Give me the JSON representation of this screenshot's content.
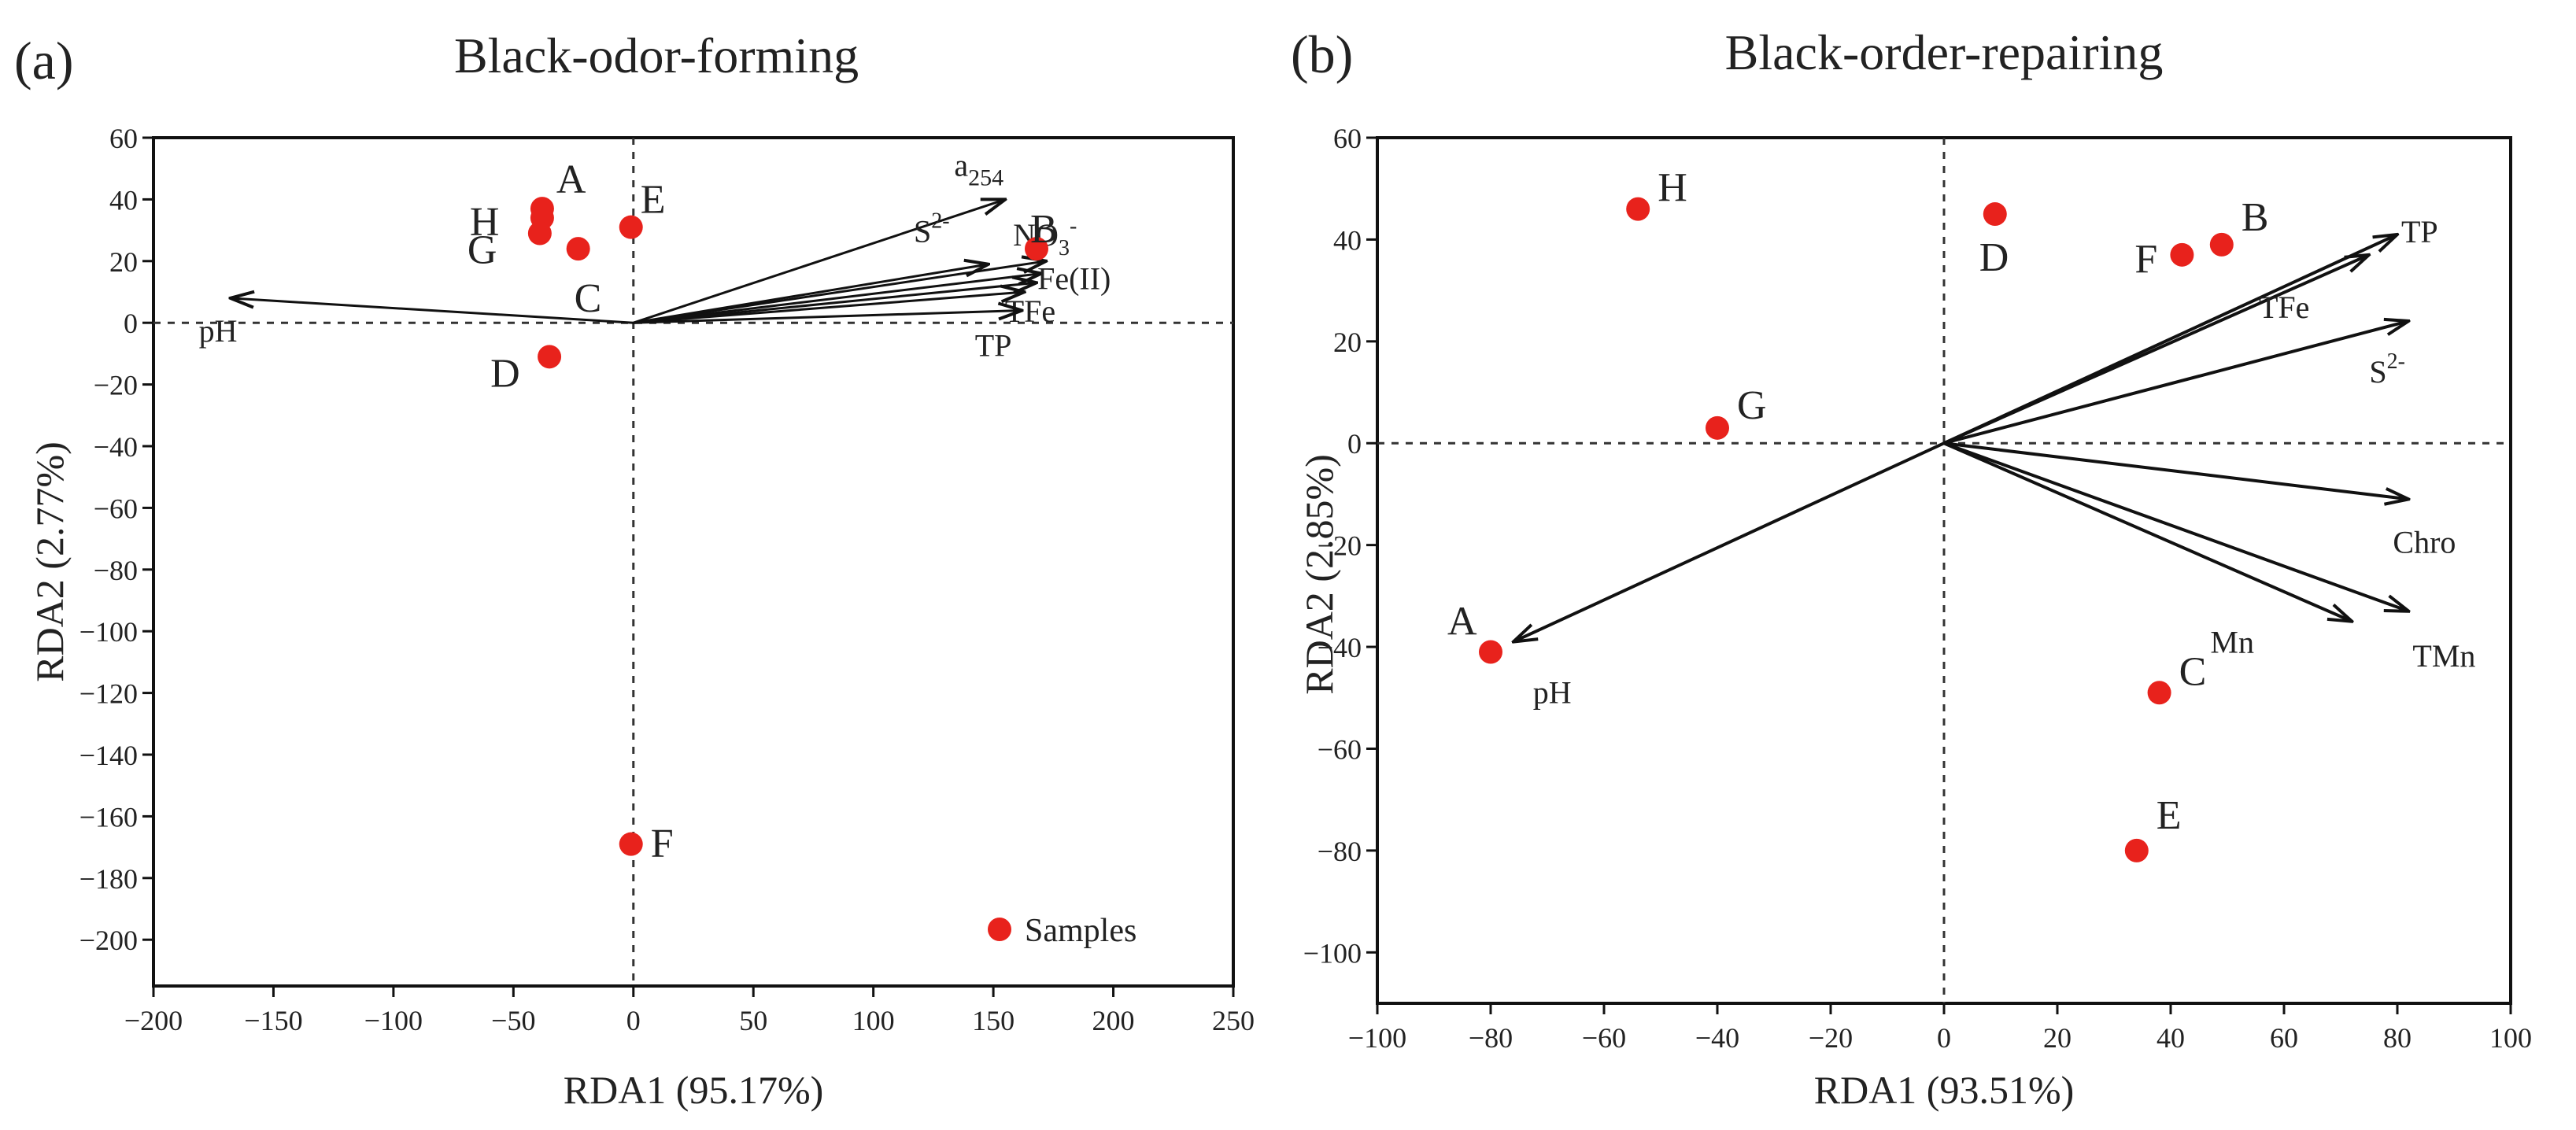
{
  "chart_data": [
    {
      "type": "scatter",
      "panel_label": "(a)",
      "title": "Black-odor-forming",
      "xlabel": "RDA1 (95.17%)",
      "ylabel": "RDA2 (2.77%)",
      "xlim": [
        -200,
        250
      ],
      "ylim": [
        -215,
        60
      ],
      "xticks": [
        -200,
        -150,
        -100,
        -50,
        0,
        50,
        100,
        150,
        200,
        250
      ],
      "yticks": [
        60,
        40,
        20,
        0,
        -20,
        -40,
        -60,
        -80,
        -100,
        -120,
        -140,
        -160,
        -180,
        -200
      ],
      "reference_lines": {
        "x": 0,
        "y": 0,
        "style": "dashed"
      },
      "legend": {
        "label": "Samples",
        "position": "bottom-right",
        "color": "#e8221c"
      },
      "point_color": "#e8221c",
      "points": [
        {
          "label": "A",
          "x": -38,
          "y": 37
        },
        {
          "label": "H",
          "x": -38,
          "y": 34
        },
        {
          "label": "G",
          "x": -39,
          "y": 29
        },
        {
          "label": "C",
          "x": -23,
          "y": 24
        },
        {
          "label": "E",
          "x": -1,
          "y": 31
        },
        {
          "label": "B",
          "x": 168,
          "y": 24
        },
        {
          "label": "D",
          "x": -35,
          "y": -11
        },
        {
          "label": "F",
          "x": -1,
          "y": -169
        }
      ],
      "vectors": [
        {
          "label": "a254",
          "x": 155,
          "y": 40
        },
        {
          "label": "NO3-",
          "x": 172,
          "y": 20
        },
        {
          "label": "S2-",
          "x": 148,
          "y": 19
        },
        {
          "label": "Fe(II)",
          "x": 170,
          "y": 16
        },
        {
          "label": "",
          "x": 168,
          "y": 13
        },
        {
          "label": "TFe",
          "x": 163,
          "y": 10
        },
        {
          "label": "TP",
          "x": 162,
          "y": 4
        },
        {
          "label": "pH",
          "x": -168,
          "y": 8
        }
      ]
    },
    {
      "type": "scatter",
      "panel_label": "(b)",
      "title": "Black-order-repairing",
      "xlabel": "RDA1 (93.51%)",
      "ylabel": "RDA2 (2.85%)",
      "xlim": [
        -100,
        100
      ],
      "ylim": [
        -110,
        60
      ],
      "xticks": [
        -100,
        -80,
        -60,
        -40,
        -20,
        0,
        20,
        40,
        60,
        80,
        100
      ],
      "yticks": [
        60,
        40,
        20,
        0,
        -20,
        -40,
        -60,
        -80,
        -100
      ],
      "reference_lines": {
        "x": 0,
        "y": 0,
        "style": "dashed"
      },
      "point_color": "#e8221c",
      "points": [
        {
          "label": "H",
          "x": -54,
          "y": 46
        },
        {
          "label": "D",
          "x": 9,
          "y": 45
        },
        {
          "label": "F",
          "x": 42,
          "y": 37
        },
        {
          "label": "B",
          "x": 49,
          "y": 39
        },
        {
          "label": "G",
          "x": -40,
          "y": 3
        },
        {
          "label": "A",
          "x": -80,
          "y": -41
        },
        {
          "label": "C",
          "x": 38,
          "y": -49
        },
        {
          "label": "E",
          "x": 34,
          "y": -80
        }
      ],
      "vectors": [
        {
          "label": "TP",
          "x": 80,
          "y": 41
        },
        {
          "label": "TFe",
          "x": 75,
          "y": 37
        },
        {
          "label": "S2-",
          "x": 82,
          "y": 24
        },
        {
          "label": "Chro",
          "x": 82,
          "y": -11
        },
        {
          "label": "Mn",
          "x": 72,
          "y": -35
        },
        {
          "label": "TMn",
          "x": 82,
          "y": -33
        },
        {
          "label": "pH",
          "x": -76,
          "y": -39
        }
      ]
    }
  ]
}
